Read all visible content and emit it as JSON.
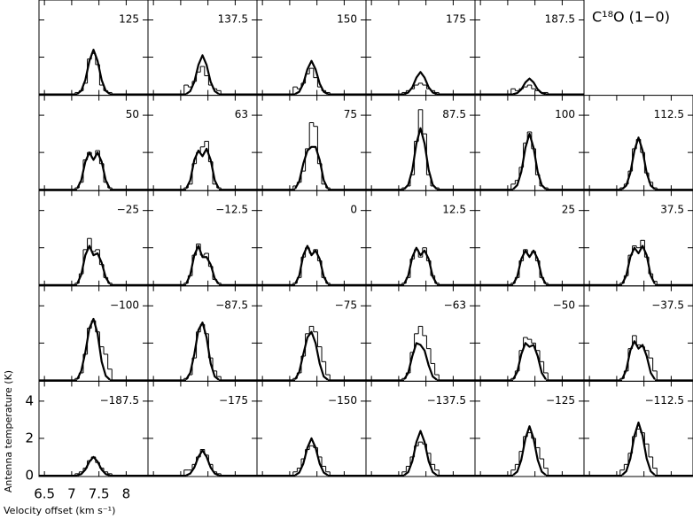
{
  "chart_data": {
    "type": "line",
    "title": "C¹⁸O (1−0)",
    "x_label": "Velocity offset (km s⁻¹)",
    "y_label": "Antenna temperature (K)",
    "xlim": [
      6.4,
      8.4
    ],
    "ylim": [
      -0.05,
      5.07
    ],
    "xticks": [
      6.5,
      7,
      7.5,
      8
    ],
    "yticks": [
      0,
      2,
      4
    ],
    "x": [
      7.1,
      7.175,
      7.25,
      7.325,
      7.4,
      7.475,
      7.55,
      7.625,
      7.7
    ],
    "panels": [
      {
        "label": "125",
        "model": [
          0.02,
          0.19,
          0.77,
          1.8,
          2.4,
          1.8,
          0.77,
          0.19,
          0.02
        ],
        "observed": [
          0.1,
          0.2,
          0.6,
          1.9,
          2.2,
          1.6,
          0.5,
          0.2,
          0.1
        ]
      },
      {
        "label": "137.5",
        "model": [
          0.02,
          0.17,
          0.67,
          1.58,
          2.1,
          1.58,
          0.67,
          0.17,
          0.02
        ],
        "observed": [
          0.5,
          0.4,
          0.7,
          1.2,
          1.5,
          1.0,
          0.5,
          0.3,
          0.2
        ]
      },
      {
        "label": "150",
        "model": [
          0.02,
          0.14,
          0.58,
          1.35,
          1.8,
          1.35,
          0.58,
          0.14,
          0.02
        ],
        "observed": [
          0.4,
          0.3,
          0.6,
          1.1,
          1.4,
          0.9,
          0.4,
          0.2,
          0.1
        ]
      },
      {
        "label": "175",
        "model": [
          0.01,
          0.1,
          0.38,
          0.9,
          1.2,
          0.9,
          0.38,
          0.1,
          0.01
        ],
        "observed": [
          0.1,
          0.2,
          0.3,
          0.5,
          0.6,
          0.5,
          0.3,
          0.2,
          0.1
        ]
      },
      {
        "label": "187.5",
        "model": [
          0.01,
          0.07,
          0.27,
          0.64,
          0.85,
          0.64,
          0.27,
          0.07,
          0.01
        ],
        "observed": [
          0.3,
          0.2,
          0.3,
          0.4,
          0.5,
          0.3,
          0.2,
          0.1,
          0.1
        ]
      },
      {
        "label": "50",
        "model": [
          0.06,
          0.5,
          1.5,
          2.0,
          1.6,
          2.0,
          1.5,
          0.5,
          0.06
        ],
        "observed": [
          0.1,
          0.4,
          1.6,
          2.0,
          1.7,
          2.1,
          1.4,
          0.4,
          0.1
        ]
      },
      {
        "label": "63",
        "model": [
          0.06,
          0.5,
          1.6,
          2.1,
          1.8,
          2.2,
          1.6,
          0.5,
          0.06
        ],
        "observed": [
          0.1,
          0.3,
          1.4,
          2.0,
          2.3,
          2.6,
          1.5,
          0.3,
          0.1
        ]
      },
      {
        "label": "75",
        "model": [
          0.05,
          0.45,
          1.4,
          2.1,
          2.3,
          2.3,
          1.6,
          0.5,
          0.05
        ],
        "observed": [
          0.2,
          0.4,
          1.0,
          2.2,
          3.6,
          3.4,
          1.4,
          0.3,
          0.1
        ]
      },
      {
        "label": "87.5",
        "model": [
          0.03,
          0.26,
          1.06,
          2.48,
          3.3,
          2.48,
          1.06,
          0.26,
          0.03
        ],
        "observed": [
          0.1,
          0.2,
          0.8,
          2.6,
          4.3,
          3.0,
          0.8,
          0.2,
          0.1
        ]
      },
      {
        "label": "100",
        "model": [
          0.03,
          0.24,
          0.96,
          2.25,
          3.0,
          2.25,
          0.96,
          0.24,
          0.03
        ],
        "observed": [
          0.3,
          0.5,
          1.2,
          2.5,
          3.1,
          2.2,
          0.8,
          0.2,
          0.1
        ]
      },
      {
        "label": "112.5",
        "model": [
          0.03,
          0.22,
          0.9,
          2.1,
          2.8,
          2.1,
          0.9,
          0.22,
          0.03
        ],
        "observed": [
          0.1,
          0.3,
          1.0,
          2.2,
          2.7,
          2.0,
          0.9,
          0.4,
          0.1
        ]
      },
      {
        "label": "−25",
        "model": [
          0.06,
          0.55,
          1.6,
          2.1,
          1.6,
          1.7,
          1.2,
          0.4,
          0.05
        ],
        "observed": [
          0.1,
          0.6,
          1.9,
          2.5,
          1.8,
          1.9,
          1.1,
          0.4,
          0.1
        ]
      },
      {
        "label": "−12.5",
        "model": [
          0.06,
          0.55,
          1.6,
          2.1,
          1.5,
          1.5,
          1.1,
          0.35,
          0.05
        ],
        "observed": [
          0.1,
          0.5,
          1.6,
          2.2,
          1.6,
          1.7,
          1.0,
          0.3,
          0.1
        ]
      },
      {
        "label": "0",
        "model": [
          0.06,
          0.5,
          1.6,
          2.1,
          1.6,
          1.85,
          1.4,
          0.45,
          0.05
        ],
        "observed": [
          0.1,
          0.4,
          1.5,
          2.0,
          1.7,
          1.9,
          1.3,
          0.4,
          0.1
        ]
      },
      {
        "label": "12.5",
        "model": [
          0.06,
          0.5,
          1.5,
          2.0,
          1.6,
          1.85,
          1.4,
          0.45,
          0.05
        ],
        "observed": [
          0.1,
          0.4,
          1.4,
          1.9,
          1.5,
          2.0,
          1.3,
          0.5,
          0.1
        ]
      },
      {
        "label": "25",
        "model": [
          0.05,
          0.45,
          1.4,
          1.85,
          1.5,
          1.85,
          1.4,
          0.45,
          0.05
        ],
        "observed": [
          0.1,
          0.4,
          1.3,
          1.9,
          1.6,
          1.8,
          1.3,
          0.4,
          0.1
        ]
      },
      {
        "label": "37.5",
        "model": [
          0.06,
          0.5,
          1.5,
          2.0,
          1.7,
          2.1,
          1.6,
          0.5,
          0.06
        ],
        "observed": [
          0.1,
          0.5,
          1.6,
          2.1,
          2.0,
          2.4,
          1.5,
          0.6,
          0.2
        ]
      },
      {
        "label": "−100",
        "model": [
          0.05,
          0.5,
          1.5,
          2.8,
          3.3,
          2.5,
          1.0,
          0.24,
          0.03
        ],
        "observed": [
          0.1,
          0.4,
          1.4,
          2.8,
          3.2,
          2.6,
          1.8,
          1.4,
          0.6
        ]
      },
      {
        "label": "−87.5",
        "model": [
          0.04,
          0.4,
          1.4,
          2.7,
          3.1,
          2.3,
          0.9,
          0.2,
          0.03
        ],
        "observed": [
          0.1,
          0.3,
          1.2,
          2.6,
          3.0,
          2.5,
          1.2,
          0.5,
          0.2
        ]
      },
      {
        "label": "−75",
        "model": [
          0.05,
          0.45,
          1.4,
          2.3,
          2.6,
          2.0,
          0.9,
          0.2,
          0.03
        ],
        "observed": [
          0.1,
          0.4,
          1.3,
          2.5,
          2.9,
          2.6,
          1.8,
          1.0,
          0.3
        ]
      },
      {
        "label": "−63",
        "model": [
          0.05,
          0.4,
          1.3,
          2.0,
          1.9,
          1.6,
          0.8,
          0.2,
          0.03
        ],
        "observed": [
          0.1,
          0.4,
          1.5,
          2.5,
          2.9,
          2.4,
          1.7,
          0.9,
          0.3
        ]
      },
      {
        "label": "−50",
        "model": [
          0.05,
          0.45,
          1.4,
          2.0,
          1.8,
          1.9,
          1.3,
          0.4,
          0.05
        ],
        "observed": [
          0.1,
          0.5,
          1.6,
          2.3,
          2.2,
          2.0,
          1.6,
          1.0,
          0.4
        ]
      },
      {
        "label": "−37.5",
        "model": [
          0.06,
          0.55,
          1.6,
          2.1,
          1.7,
          1.9,
          1.3,
          0.4,
          0.05
        ],
        "observed": [
          0.1,
          0.5,
          1.7,
          2.4,
          1.9,
          1.8,
          1.6,
          1.2,
          0.5
        ]
      },
      {
        "label": "−187.5",
        "model": [
          0.01,
          0.08,
          0.32,
          0.75,
          1.0,
          0.75,
          0.32,
          0.08,
          0.01
        ],
        "observed": [
          0.1,
          0.2,
          0.4,
          0.8,
          1.0,
          0.7,
          0.4,
          0.2,
          0.1
        ]
      },
      {
        "label": "−175",
        "model": [
          0.01,
          0.11,
          0.43,
          1.01,
          1.35,
          1.01,
          0.43,
          0.11,
          0.01
        ],
        "observed": [
          0.3,
          0.3,
          0.6,
          1.0,
          1.4,
          1.1,
          0.6,
          0.2,
          0.1
        ]
      },
      {
        "label": "−150",
        "model": [
          0.02,
          0.16,
          0.64,
          1.5,
          2.0,
          1.5,
          0.64,
          0.16,
          0.02
        ],
        "observed": [
          0.2,
          0.4,
          0.9,
          1.4,
          1.6,
          1.5,
          1.0,
          0.5,
          0.2
        ]
      },
      {
        "label": "−137.5",
        "model": [
          0.02,
          0.19,
          0.77,
          1.8,
          2.4,
          1.8,
          0.77,
          0.19,
          0.02
        ],
        "observed": [
          0.2,
          0.5,
          1.0,
          1.6,
          1.8,
          1.7,
          1.2,
          0.6,
          0.3
        ]
      },
      {
        "label": "−125",
        "model": [
          0.03,
          0.21,
          0.85,
          1.99,
          2.65,
          1.99,
          0.85,
          0.21,
          0.03
        ],
        "observed": [
          0.3,
          0.6,
          1.3,
          2.1,
          2.3,
          2.0,
          1.5,
          0.9,
          0.4
        ]
      },
      {
        "label": "−112.5",
        "model": [
          0.03,
          0.23,
          0.91,
          2.14,
          2.85,
          2.14,
          0.91,
          0.23,
          0.03
        ],
        "observed": [
          0.3,
          0.6,
          1.2,
          2.1,
          2.5,
          2.3,
          1.7,
          1.0,
          0.4
        ]
      }
    ]
  }
}
